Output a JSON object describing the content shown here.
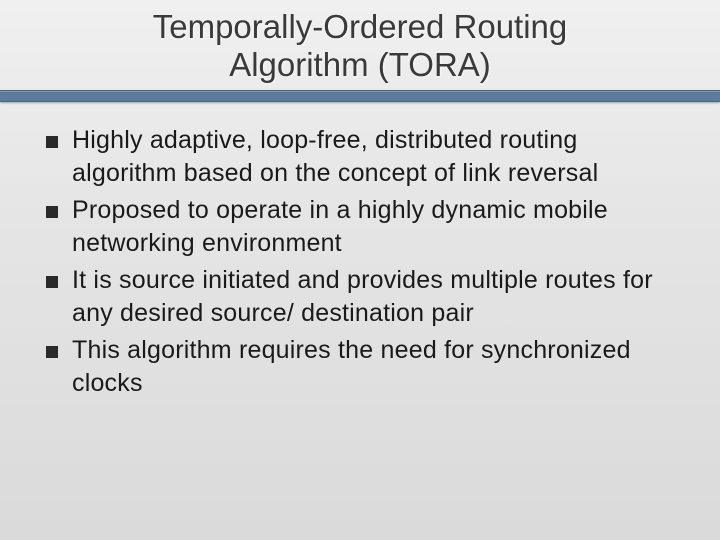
{
  "slide": {
    "title_line1": "Temporally-Ordered Routing",
    "title_line2": "Algorithm (TORA)",
    "bullets": [
      "Highly adaptive, loop-free, distributed routing algorithm based on the concept of link reversal",
      "Proposed to operate in a highly dynamic mobile networking environment",
      "It is source initiated and provides multiple routes for any desired source/ destination pair",
      "This algorithm requires the need for synchronized clocks"
    ]
  },
  "style": {
    "title_color": "#3a3a3a",
    "title_fontsize": 33,
    "underline_color": "#5b7a9c",
    "bullet_marker_color": "#2a2a2a",
    "bullet_fontsize": 25,
    "bullet_text_color": "#1a1a1a",
    "background_gradient_top": "#f0f0f0",
    "background_gradient_bottom": "#dadada"
  }
}
